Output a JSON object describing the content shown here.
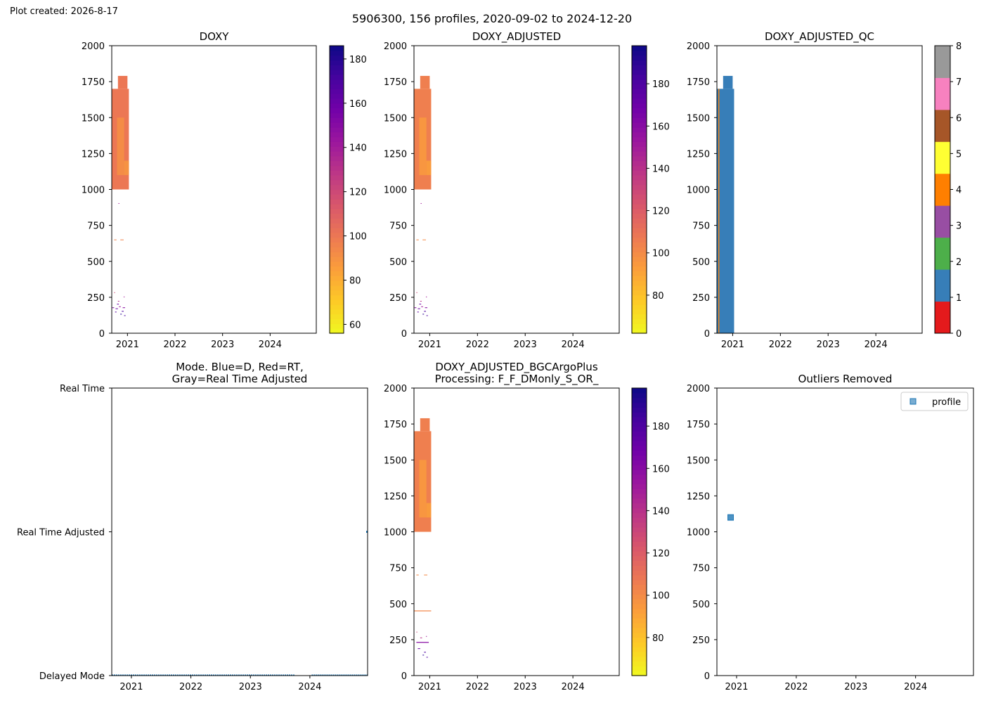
{
  "plot_created": "Plot created: 2026-8-17",
  "suptitle": "5906300, 156 profiles, 2020-09-02 to 2024-12-20",
  "chart_data": [
    {
      "id": "doxy",
      "type": "heatmap",
      "title": "DOXY",
      "xlabel": "",
      "ylabel": "",
      "xlim": [
        2020.67,
        2024.97
      ],
      "ylim": [
        2000,
        0
      ],
      "xticks": [
        {
          "value": 2021,
          "label": "2021"
        },
        {
          "value": 2022,
          "label": "2022"
        },
        {
          "value": 2023,
          "label": "2023"
        },
        {
          "value": 2024,
          "label": "2024"
        }
      ],
      "yticks": [
        {
          "value": 0,
          "label": "0"
        },
        {
          "value": 250,
          "label": "250"
        },
        {
          "value": 500,
          "label": "500"
        },
        {
          "value": 750,
          "label": "750"
        },
        {
          "value": 1000,
          "label": "1000"
        },
        {
          "value": 1250,
          "label": "1250"
        },
        {
          "value": 1500,
          "label": "1500"
        },
        {
          "value": 1750,
          "label": "1750"
        },
        {
          "value": 2000,
          "label": "2000"
        }
      ],
      "colorbar": {
        "colormap": "plasma_r",
        "range": [
          56,
          186
        ],
        "ticks": [
          {
            "value": 60,
            "label": "60"
          },
          {
            "value": 80,
            "label": "80"
          },
          {
            "value": 100,
            "label": "100"
          },
          {
            "value": 120,
            "label": "120"
          },
          {
            "value": 140,
            "label": "140"
          },
          {
            "value": 160,
            "label": "160"
          },
          {
            "value": 180,
            "label": "180"
          }
        ]
      },
      "cells": [
        {
          "x0": 2020.67,
          "x1": 2021.03,
          "y0": 1000,
          "y1": 1700,
          "v": 100
        },
        {
          "x0": 2020.78,
          "x1": 2020.93,
          "y0": 1100,
          "y1": 1500,
          "v": 92
        },
        {
          "x0": 2020.93,
          "x1": 2021.03,
          "y0": 1100,
          "y1": 1200,
          "v": 90
        },
        {
          "x0": 2020.8,
          "x1": 2021.0,
          "y0": 1700,
          "y1": 1790,
          "v": 100
        },
        {
          "x0": 2020.72,
          "x1": 2020.77,
          "y0": 647,
          "y1": 652,
          "v": 95
        },
        {
          "x0": 2020.85,
          "x1": 2020.92,
          "y0": 647,
          "y1": 652,
          "v": 95
        },
        {
          "x0": 2020.68,
          "x1": 2020.72,
          "y0": 175,
          "y1": 180,
          "v": 150
        },
        {
          "x0": 2020.75,
          "x1": 2020.8,
          "y0": 168,
          "y1": 173,
          "v": 160
        },
        {
          "x0": 2020.82,
          "x1": 2020.86,
          "y0": 182,
          "y1": 187,
          "v": 140
        },
        {
          "x0": 2020.88,
          "x1": 2020.92,
          "y0": 150,
          "y1": 155,
          "v": 170
        },
        {
          "x0": 2020.9,
          "x1": 2020.95,
          "y0": 175,
          "y1": 180,
          "v": 150
        },
        {
          "x0": 2020.78,
          "x1": 2020.82,
          "y0": 200,
          "y1": 205,
          "v": 160
        },
        {
          "x0": 2020.85,
          "x1": 2020.88,
          "y0": 130,
          "y1": 135,
          "v": 180
        },
        {
          "x0": 2020.93,
          "x1": 2020.96,
          "y0": 120,
          "y1": 125,
          "v": 170
        },
        {
          "x0": 2020.74,
          "x1": 2020.77,
          "y0": 145,
          "y1": 150,
          "v": 165
        },
        {
          "x0": 2020.8,
          "x1": 2020.83,
          "y0": 220,
          "y1": 225,
          "v": 130
        },
        {
          "x0": 2020.72,
          "x1": 2020.74,
          "y0": 280,
          "y1": 285,
          "v": 120
        },
        {
          "x0": 2020.92,
          "x1": 2020.94,
          "y0": 250,
          "y1": 255,
          "v": 140
        },
        {
          "x0": 2020.81,
          "x1": 2020.83,
          "y0": 900,
          "y1": 905,
          "v": 140
        }
      ]
    },
    {
      "id": "doxy_adjusted",
      "type": "heatmap",
      "title": "DOXY_ADJUSTED",
      "xlabel": "",
      "ylabel": "",
      "xlim": [
        2020.67,
        2024.97
      ],
      "ylim": [
        2000,
        0
      ],
      "xticks": [
        {
          "value": 2021,
          "label": "2021"
        },
        {
          "value": 2022,
          "label": "2022"
        },
        {
          "value": 2023,
          "label": "2023"
        },
        {
          "value": 2024,
          "label": "2024"
        }
      ],
      "yticks": [
        {
          "value": 0,
          "label": "0"
        },
        {
          "value": 250,
          "label": "250"
        },
        {
          "value": 500,
          "label": "500"
        },
        {
          "value": 750,
          "label": "750"
        },
        {
          "value": 1000,
          "label": "1000"
        },
        {
          "value": 1250,
          "label": "1250"
        },
        {
          "value": 1500,
          "label": "1500"
        },
        {
          "value": 1750,
          "label": "1750"
        },
        {
          "value": 2000,
          "label": "2000"
        }
      ],
      "colorbar": {
        "colormap": "plasma_r",
        "range": [
          62,
          198
        ],
        "ticks": [
          {
            "value": 80,
            "label": "80"
          },
          {
            "value": 100,
            "label": "100"
          },
          {
            "value": 120,
            "label": "120"
          },
          {
            "value": 140,
            "label": "140"
          },
          {
            "value": 160,
            "label": "160"
          },
          {
            "value": 180,
            "label": "180"
          }
        ]
      },
      "cells": [
        {
          "x0": 2020.67,
          "x1": 2021.03,
          "y0": 1000,
          "y1": 1700,
          "v": 105
        },
        {
          "x0": 2020.78,
          "x1": 2020.93,
          "y0": 1100,
          "y1": 1500,
          "v": 96
        },
        {
          "x0": 2020.93,
          "x1": 2021.03,
          "y0": 1100,
          "y1": 1200,
          "v": 94
        },
        {
          "x0": 2020.8,
          "x1": 2021.0,
          "y0": 1700,
          "y1": 1790,
          "v": 105
        },
        {
          "x0": 2020.72,
          "x1": 2020.77,
          "y0": 647,
          "y1": 652,
          "v": 100
        },
        {
          "x0": 2020.85,
          "x1": 2020.92,
          "y0": 647,
          "y1": 652,
          "v": 100
        },
        {
          "x0": 2020.68,
          "x1": 2020.72,
          "y0": 175,
          "y1": 180,
          "v": 160
        },
        {
          "x0": 2020.75,
          "x1": 2020.8,
          "y0": 168,
          "y1": 173,
          "v": 170
        },
        {
          "x0": 2020.82,
          "x1": 2020.86,
          "y0": 182,
          "y1": 187,
          "v": 150
        },
        {
          "x0": 2020.88,
          "x1": 2020.92,
          "y0": 150,
          "y1": 155,
          "v": 180
        },
        {
          "x0": 2020.9,
          "x1": 2020.95,
          "y0": 175,
          "y1": 180,
          "v": 160
        },
        {
          "x0": 2020.78,
          "x1": 2020.82,
          "y0": 200,
          "y1": 205,
          "v": 170
        },
        {
          "x0": 2020.85,
          "x1": 2020.88,
          "y0": 130,
          "y1": 135,
          "v": 190
        },
        {
          "x0": 2020.93,
          "x1": 2020.96,
          "y0": 120,
          "y1": 125,
          "v": 180
        },
        {
          "x0": 2020.74,
          "x1": 2020.77,
          "y0": 145,
          "y1": 150,
          "v": 175
        },
        {
          "x0": 2020.8,
          "x1": 2020.83,
          "y0": 220,
          "y1": 225,
          "v": 140
        },
        {
          "x0": 2020.72,
          "x1": 2020.74,
          "y0": 280,
          "y1": 285,
          "v": 130
        },
        {
          "x0": 2020.92,
          "x1": 2020.94,
          "y0": 250,
          "y1": 255,
          "v": 150
        },
        {
          "x0": 2020.81,
          "x1": 2020.83,
          "y0": 900,
          "y1": 905,
          "v": 150
        }
      ]
    },
    {
      "id": "doxy_adjusted_qc",
      "type": "heatmap",
      "title": "DOXY_ADJUSTED_QC",
      "xlabel": "",
      "ylabel": "",
      "xlim": [
        2020.67,
        2024.97
      ],
      "ylim": [
        2000,
        0
      ],
      "xticks": [
        {
          "value": 2021,
          "label": "2021"
        },
        {
          "value": 2022,
          "label": "2022"
        },
        {
          "value": 2023,
          "label": "2023"
        },
        {
          "value": 2024,
          "label": "2024"
        }
      ],
      "yticks": [
        {
          "value": 0,
          "label": "0"
        },
        {
          "value": 250,
          "label": "250"
        },
        {
          "value": 500,
          "label": "500"
        },
        {
          "value": 750,
          "label": "750"
        },
        {
          "value": 1000,
          "label": "1000"
        },
        {
          "value": 1250,
          "label": "1250"
        },
        {
          "value": 1500,
          "label": "1500"
        },
        {
          "value": 1750,
          "label": "1750"
        },
        {
          "value": 2000,
          "label": "2000"
        }
      ],
      "colorbar": {
        "colormap": "qc_flags",
        "range": [
          0,
          8
        ],
        "ticks": [
          {
            "value": 0,
            "label": "0"
          },
          {
            "value": 1,
            "label": "1"
          },
          {
            "value": 2,
            "label": "2"
          },
          {
            "value": 3,
            "label": "3"
          },
          {
            "value": 4,
            "label": "4"
          },
          {
            "value": 5,
            "label": "5"
          },
          {
            "value": 6,
            "label": "6"
          },
          {
            "value": 7,
            "label": "7"
          },
          {
            "value": 8,
            "label": "8"
          }
        ],
        "bands": [
          "#e41a1c",
          "#377eb8",
          "#4daf4a",
          "#984ea3",
          "#ff7f00",
          "#ffff33",
          "#a65628",
          "#f781bf",
          "#999999"
        ]
      },
      "cells": [
        {
          "x0": 2020.67,
          "x1": 2021.03,
          "y0": 0,
          "y1": 1700,
          "v": 1
        },
        {
          "x0": 2020.8,
          "x1": 2021.0,
          "y0": 1700,
          "y1": 1790,
          "v": 1
        },
        {
          "x0": 2020.7,
          "x1": 2020.72,
          "y0": 0,
          "y1": 1700,
          "v": 4
        }
      ]
    },
    {
      "id": "mode",
      "type": "scatter",
      "title": "Mode. Blue=D, Red=RT,\nGray=Real Time Adjusted",
      "xlabel": "",
      "ylabel": "",
      "xlim": [
        2020.67,
        2024.97
      ],
      "ylim": [
        0,
        2
      ],
      "xticks": [
        {
          "value": 2021,
          "label": "2021"
        },
        {
          "value": 2022,
          "label": "2022"
        },
        {
          "value": 2023,
          "label": "2023"
        },
        {
          "value": 2024,
          "label": "2024"
        }
      ],
      "yticks": [
        {
          "value": 2,
          "label": "Delayed Mode"
        },
        {
          "value": 1,
          "label": "Real Time Adjusted"
        },
        {
          "value": 0,
          "label": "Real Time"
        }
      ],
      "series": [
        {
          "color": "#1f77b4",
          "segments": [
            {
              "x_start": 2020.67,
              "x_end": 2023.74,
              "y": 2
            },
            {
              "x_start": 2024.03,
              "x_end": 2024.97,
              "y": 2
            }
          ]
        },
        {
          "color": "#1f77b4",
          "points": [
            {
              "x": 2024.97,
              "y": 1
            }
          ]
        }
      ]
    },
    {
      "id": "bgcargoplus",
      "type": "heatmap",
      "title": "DOXY_ADJUSTED_BGCArgoPlus\nProcessing: F_F_DMonly_S_OR_",
      "xlabel": "",
      "ylabel": "",
      "xlim": [
        2020.67,
        2024.97
      ],
      "ylim": [
        2000,
        0
      ],
      "xticks": [
        {
          "value": 2021,
          "label": "2021"
        },
        {
          "value": 2022,
          "label": "2022"
        },
        {
          "value": 2023,
          "label": "2023"
        },
        {
          "value": 2024,
          "label": "2024"
        }
      ],
      "yticks": [
        {
          "value": 0,
          "label": "0"
        },
        {
          "value": 250,
          "label": "250"
        },
        {
          "value": 500,
          "label": "500"
        },
        {
          "value": 750,
          "label": "750"
        },
        {
          "value": 1000,
          "label": "1000"
        },
        {
          "value": 1250,
          "label": "1250"
        },
        {
          "value": 1500,
          "label": "1500"
        },
        {
          "value": 1750,
          "label": "1750"
        },
        {
          "value": 2000,
          "label": "2000"
        }
      ],
      "colorbar": {
        "colormap": "plasma_r",
        "range": [
          62,
          198
        ],
        "ticks": [
          {
            "value": 80,
            "label": "80"
          },
          {
            "value": 100,
            "label": "100"
          },
          {
            "value": 120,
            "label": "120"
          },
          {
            "value": 140,
            "label": "140"
          },
          {
            "value": 160,
            "label": "160"
          },
          {
            "value": 180,
            "label": "180"
          }
        ]
      },
      "cells": [
        {
          "x0": 2020.67,
          "x1": 2021.03,
          "y0": 1000,
          "y1": 1700,
          "v": 105
        },
        {
          "x0": 2020.78,
          "x1": 2020.93,
          "y0": 1100,
          "y1": 1500,
          "v": 96
        },
        {
          "x0": 2020.93,
          "x1": 2021.03,
          "y0": 1100,
          "y1": 1200,
          "v": 94
        },
        {
          "x0": 2020.8,
          "x1": 2021.0,
          "y0": 1700,
          "y1": 1790,
          "v": 105
        },
        {
          "x0": 2020.67,
          "x1": 2021.03,
          "y0": 447,
          "y1": 453,
          "v": 102
        },
        {
          "x0": 2020.72,
          "x1": 2020.77,
          "y0": 697,
          "y1": 702,
          "v": 100
        },
        {
          "x0": 2020.88,
          "x1": 2020.95,
          "y0": 697,
          "y1": 702,
          "v": 100
        },
        {
          "x0": 2020.72,
          "x1": 2020.98,
          "y0": 228,
          "y1": 234,
          "v": 160
        },
        {
          "x0": 2020.75,
          "x1": 2020.8,
          "y0": 185,
          "y1": 190,
          "v": 170
        },
        {
          "x0": 2020.88,
          "x1": 2020.92,
          "y0": 160,
          "y1": 165,
          "v": 180
        },
        {
          "x0": 2020.85,
          "x1": 2020.88,
          "y0": 140,
          "y1": 145,
          "v": 190
        },
        {
          "x0": 2020.93,
          "x1": 2020.96,
          "y0": 125,
          "y1": 130,
          "v": 180
        },
        {
          "x0": 2020.8,
          "x1": 2020.84,
          "y0": 260,
          "y1": 265,
          "v": 140
        },
        {
          "x0": 2020.72,
          "x1": 2020.74,
          "y0": 300,
          "y1": 305,
          "v": 130
        },
        {
          "x0": 2020.92,
          "x1": 2020.94,
          "y0": 270,
          "y1": 275,
          "v": 150
        }
      ]
    },
    {
      "id": "outliers",
      "type": "scatter",
      "title": "Outliers Removed",
      "xlabel": "",
      "ylabel": "",
      "xlim": [
        2020.67,
        2024.97
      ],
      "ylim": [
        2000,
        0
      ],
      "xticks": [
        {
          "value": 2021,
          "label": "2021"
        },
        {
          "value": 2022,
          "label": "2022"
        },
        {
          "value": 2023,
          "label": "2023"
        },
        {
          "value": 2024,
          "label": "2024"
        }
      ],
      "yticks": [
        {
          "value": 0,
          "label": "0"
        },
        {
          "value": 250,
          "label": "250"
        },
        {
          "value": 500,
          "label": "500"
        },
        {
          "value": 750,
          "label": "750"
        },
        {
          "value": 1000,
          "label": "1000"
        },
        {
          "value": 1250,
          "label": "1250"
        },
        {
          "value": 1500,
          "label": "1500"
        },
        {
          "value": 1750,
          "label": "1750"
        },
        {
          "value": 2000,
          "label": "2000"
        }
      ],
      "legend": {
        "placement": "top-right",
        "entries": [
          {
            "label": "profile",
            "color": "#1f77b4",
            "marker": "square"
          }
        ]
      },
      "series": [
        {
          "name": "profile",
          "color": "#1f77b4",
          "points": [
            {
              "x": 2020.9,
              "y": 1100
            }
          ]
        }
      ]
    }
  ]
}
